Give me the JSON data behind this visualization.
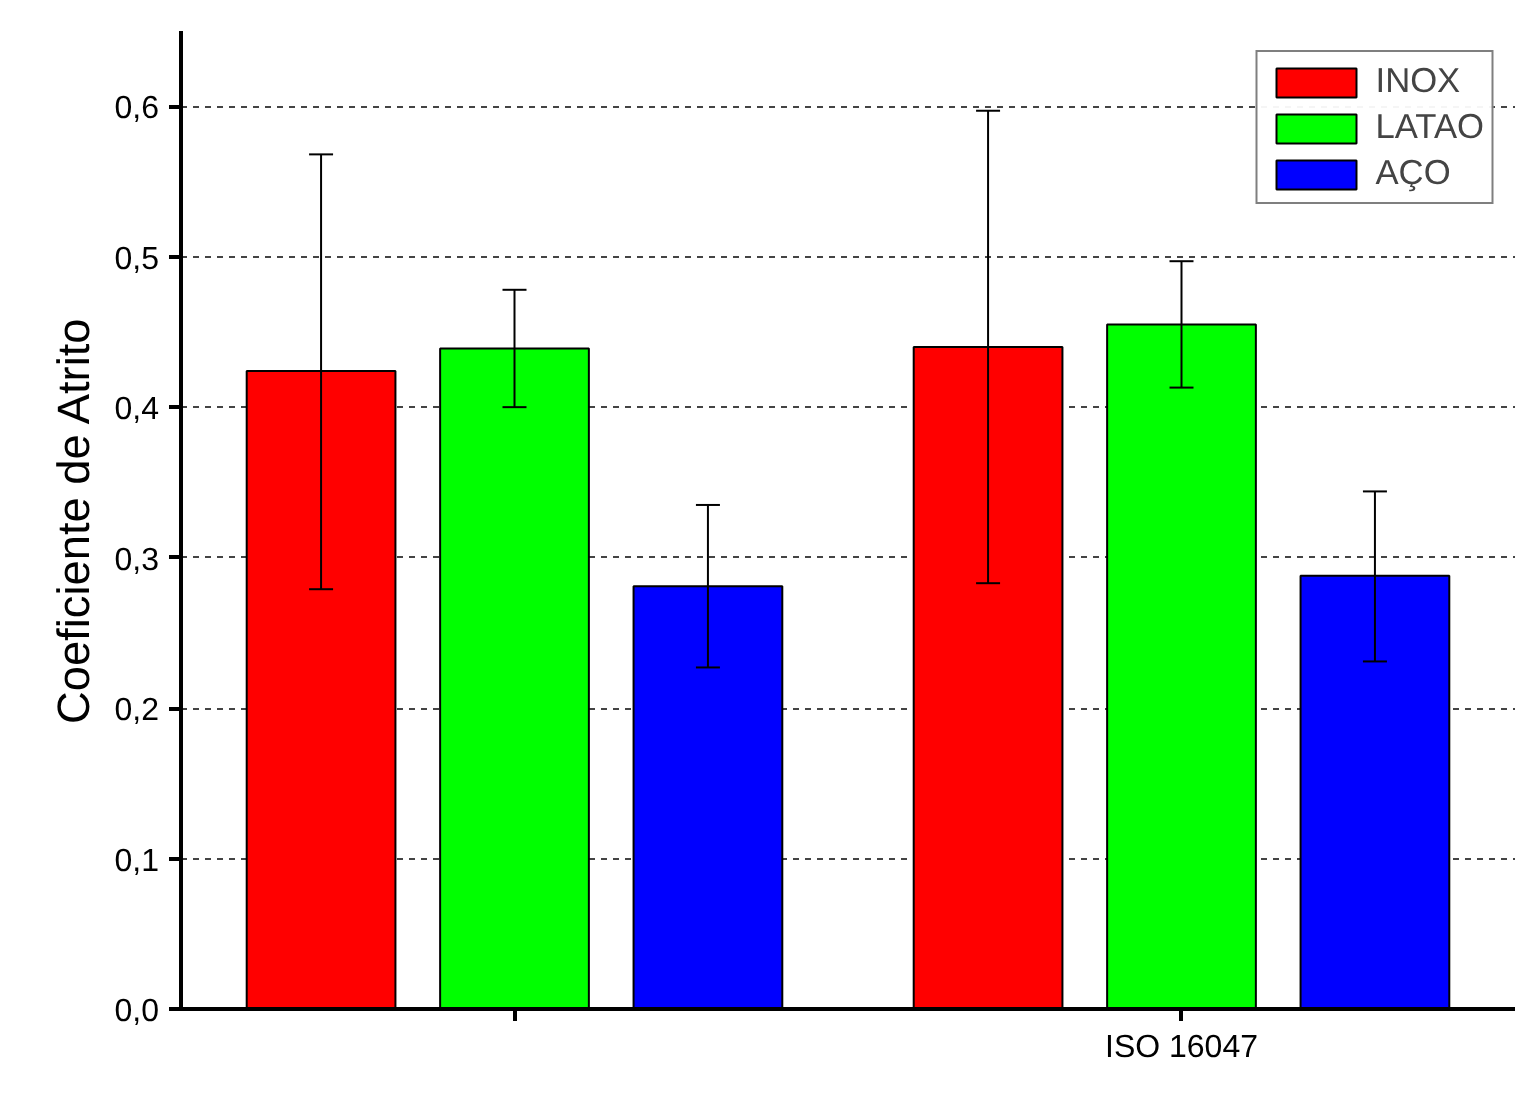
{
  "chart_data": {
    "type": "bar",
    "ylabel": "Coeficiente de Atrito",
    "categories": [
      null,
      "ISO 16047"
    ],
    "series": [
      {
        "name": "INOX",
        "color": "#ff0000",
        "values": [
          0.424,
          0.44
        ],
        "errors": [
          [
            0.279,
            0.568
          ],
          [
            0.283,
            0.597
          ]
        ]
      },
      {
        "name": "LATAO",
        "color": "#00ff00",
        "values": [
          0.439,
          0.455
        ],
        "errors": [
          [
            0.4,
            0.478
          ],
          [
            0.413,
            0.497
          ]
        ]
      },
      {
        "name": "AÇO",
        "color": "#0000ff",
        "values": [
          0.281,
          0.288
        ],
        "errors": [
          [
            0.227,
            0.335
          ],
          [
            0.231,
            0.344
          ]
        ]
      }
    ],
    "ylim": [
      0,
      0.65
    ],
    "yticks": [
      {
        "value": 0,
        "label": "0,0"
      },
      {
        "value": 0.1,
        "label": "0,1"
      },
      {
        "value": 0.2,
        "label": "0,2"
      },
      {
        "value": 0.3,
        "label": "0,3"
      },
      {
        "value": 0.4,
        "label": "0,4"
      },
      {
        "value": 0.5,
        "label": "0,5"
      },
      {
        "value": 0.6,
        "label": "0,6"
      }
    ],
    "grid": "y",
    "legend": "top right"
  }
}
